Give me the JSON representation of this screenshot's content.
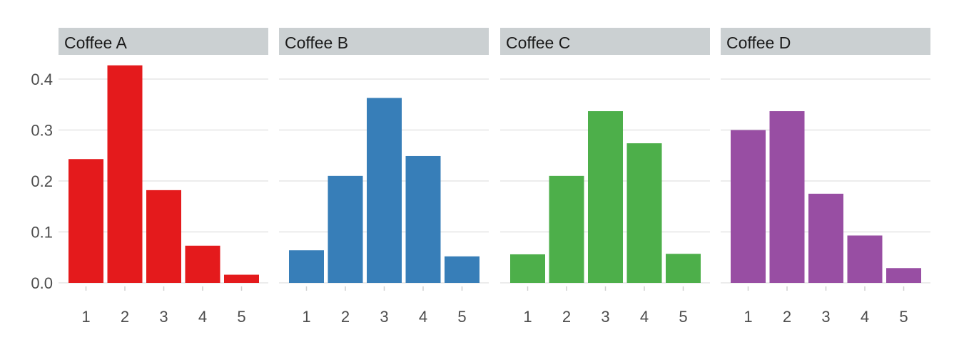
{
  "chart_data": {
    "type": "bar",
    "categories": [
      "1",
      "2",
      "3",
      "4",
      "5"
    ],
    "ylim": [
      0,
      0.43
    ],
    "yticks": [
      0.0,
      0.1,
      0.2,
      0.3,
      0.4
    ],
    "ytick_labels": [
      "0.0",
      "0.1",
      "0.2",
      "0.3",
      "0.4"
    ],
    "grid": true,
    "facets": [
      {
        "name": "Coffee A",
        "color": "#e41a1c",
        "values": [
          0.243,
          0.427,
          0.182,
          0.073,
          0.016
        ]
      },
      {
        "name": "Coffee B",
        "color": "#377eb8",
        "values": [
          0.064,
          0.21,
          0.363,
          0.249,
          0.052
        ]
      },
      {
        "name": "Coffee C",
        "color": "#4daf4a",
        "values": [
          0.056,
          0.21,
          0.337,
          0.274,
          0.057
        ]
      },
      {
        "name": "Coffee D",
        "color": "#984ea3",
        "values": [
          0.3,
          0.337,
          0.175,
          0.093,
          0.029
        ]
      }
    ]
  }
}
